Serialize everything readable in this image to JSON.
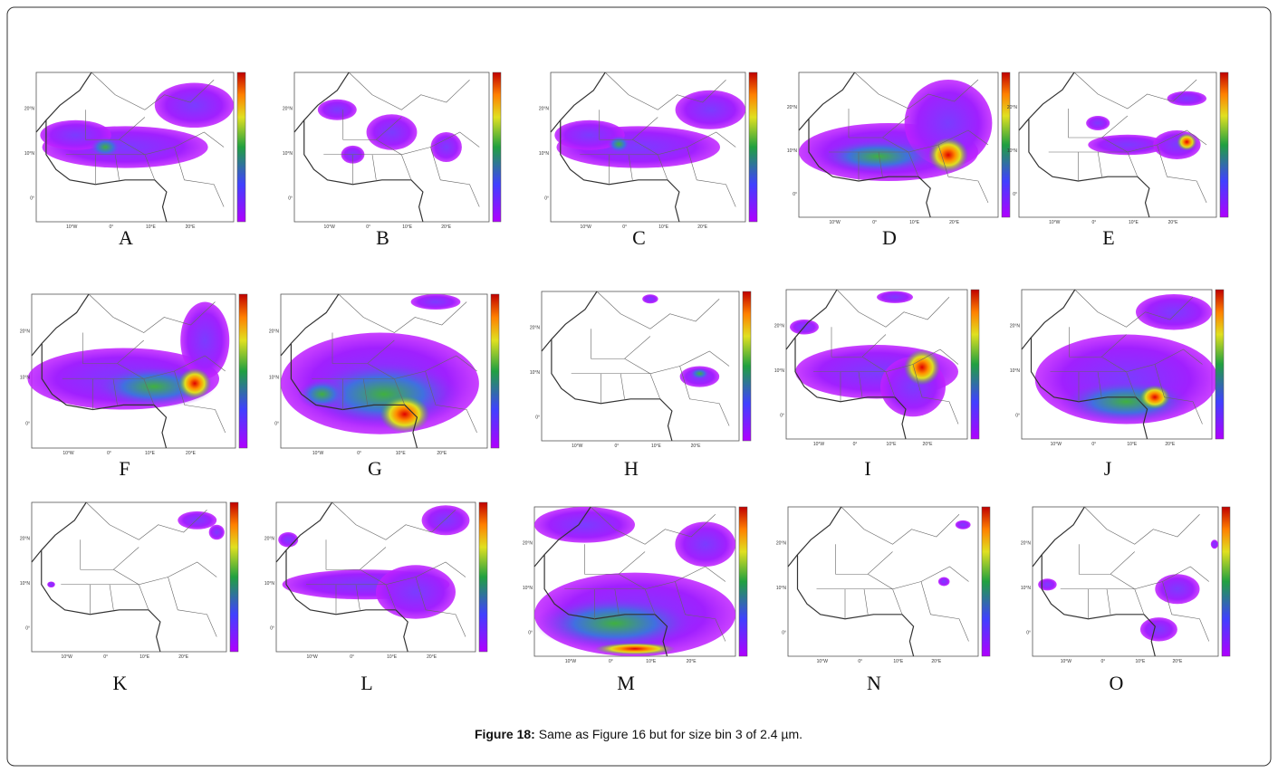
{
  "panels": [
    {
      "label": "A"
    },
    {
      "label": "B"
    },
    {
      "label": "C"
    },
    {
      "label": "D"
    },
    {
      "label": "E"
    },
    {
      "label": "F"
    },
    {
      "label": "G"
    },
    {
      "label": "H"
    },
    {
      "label": "I"
    },
    {
      "label": "J"
    },
    {
      "label": "K"
    },
    {
      "label": "L"
    },
    {
      "label": "M"
    },
    {
      "label": "N"
    },
    {
      "label": "O"
    }
  ],
  "map_axes": {
    "y_labels": [
      "20°N",
      "10°N",
      "0°"
    ],
    "x_labels": [
      "10°W",
      "0°",
      "10°E",
      "20°E"
    ]
  },
  "caption": {
    "label": "Figure 18:",
    "text": " Same as Figure 16 but for size bin 3 of 2.4 µm."
  }
}
